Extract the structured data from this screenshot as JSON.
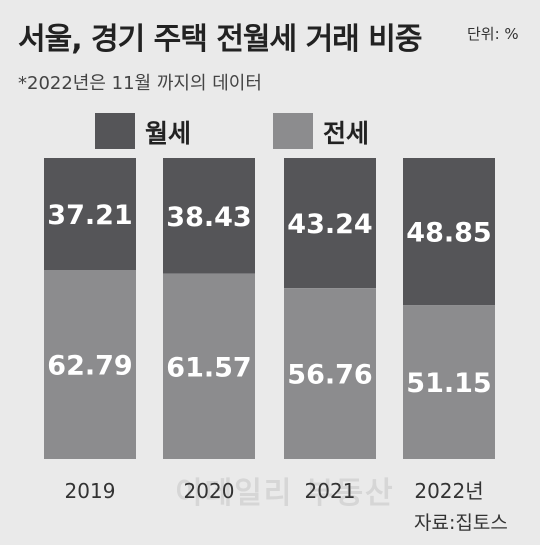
{
  "title": "서울, 경기 주택 전월세 거래 비중",
  "unit": "단위: %",
  "note": "*2022년은 11월 까지의 데이터",
  "source": "자료:집토스",
  "watermark": "이데일리 부동산",
  "colors": {
    "monthly_rent": "#555558",
    "jeonse": "#8c8c8e",
    "background": "#eaeaea"
  },
  "chart_data": {
    "type": "bar",
    "stacked": true,
    "categories": [
      "2019",
      "2020",
      "2021",
      "2022년"
    ],
    "series": [
      {
        "name": "월세",
        "values": [
          37.21,
          38.43,
          43.24,
          48.85
        ]
      },
      {
        "name": "전세",
        "values": [
          62.79,
          61.57,
          56.76,
          51.15
        ]
      }
    ],
    "ylim": [
      0,
      100
    ],
    "legend_position": "top-left",
    "grid": false
  }
}
